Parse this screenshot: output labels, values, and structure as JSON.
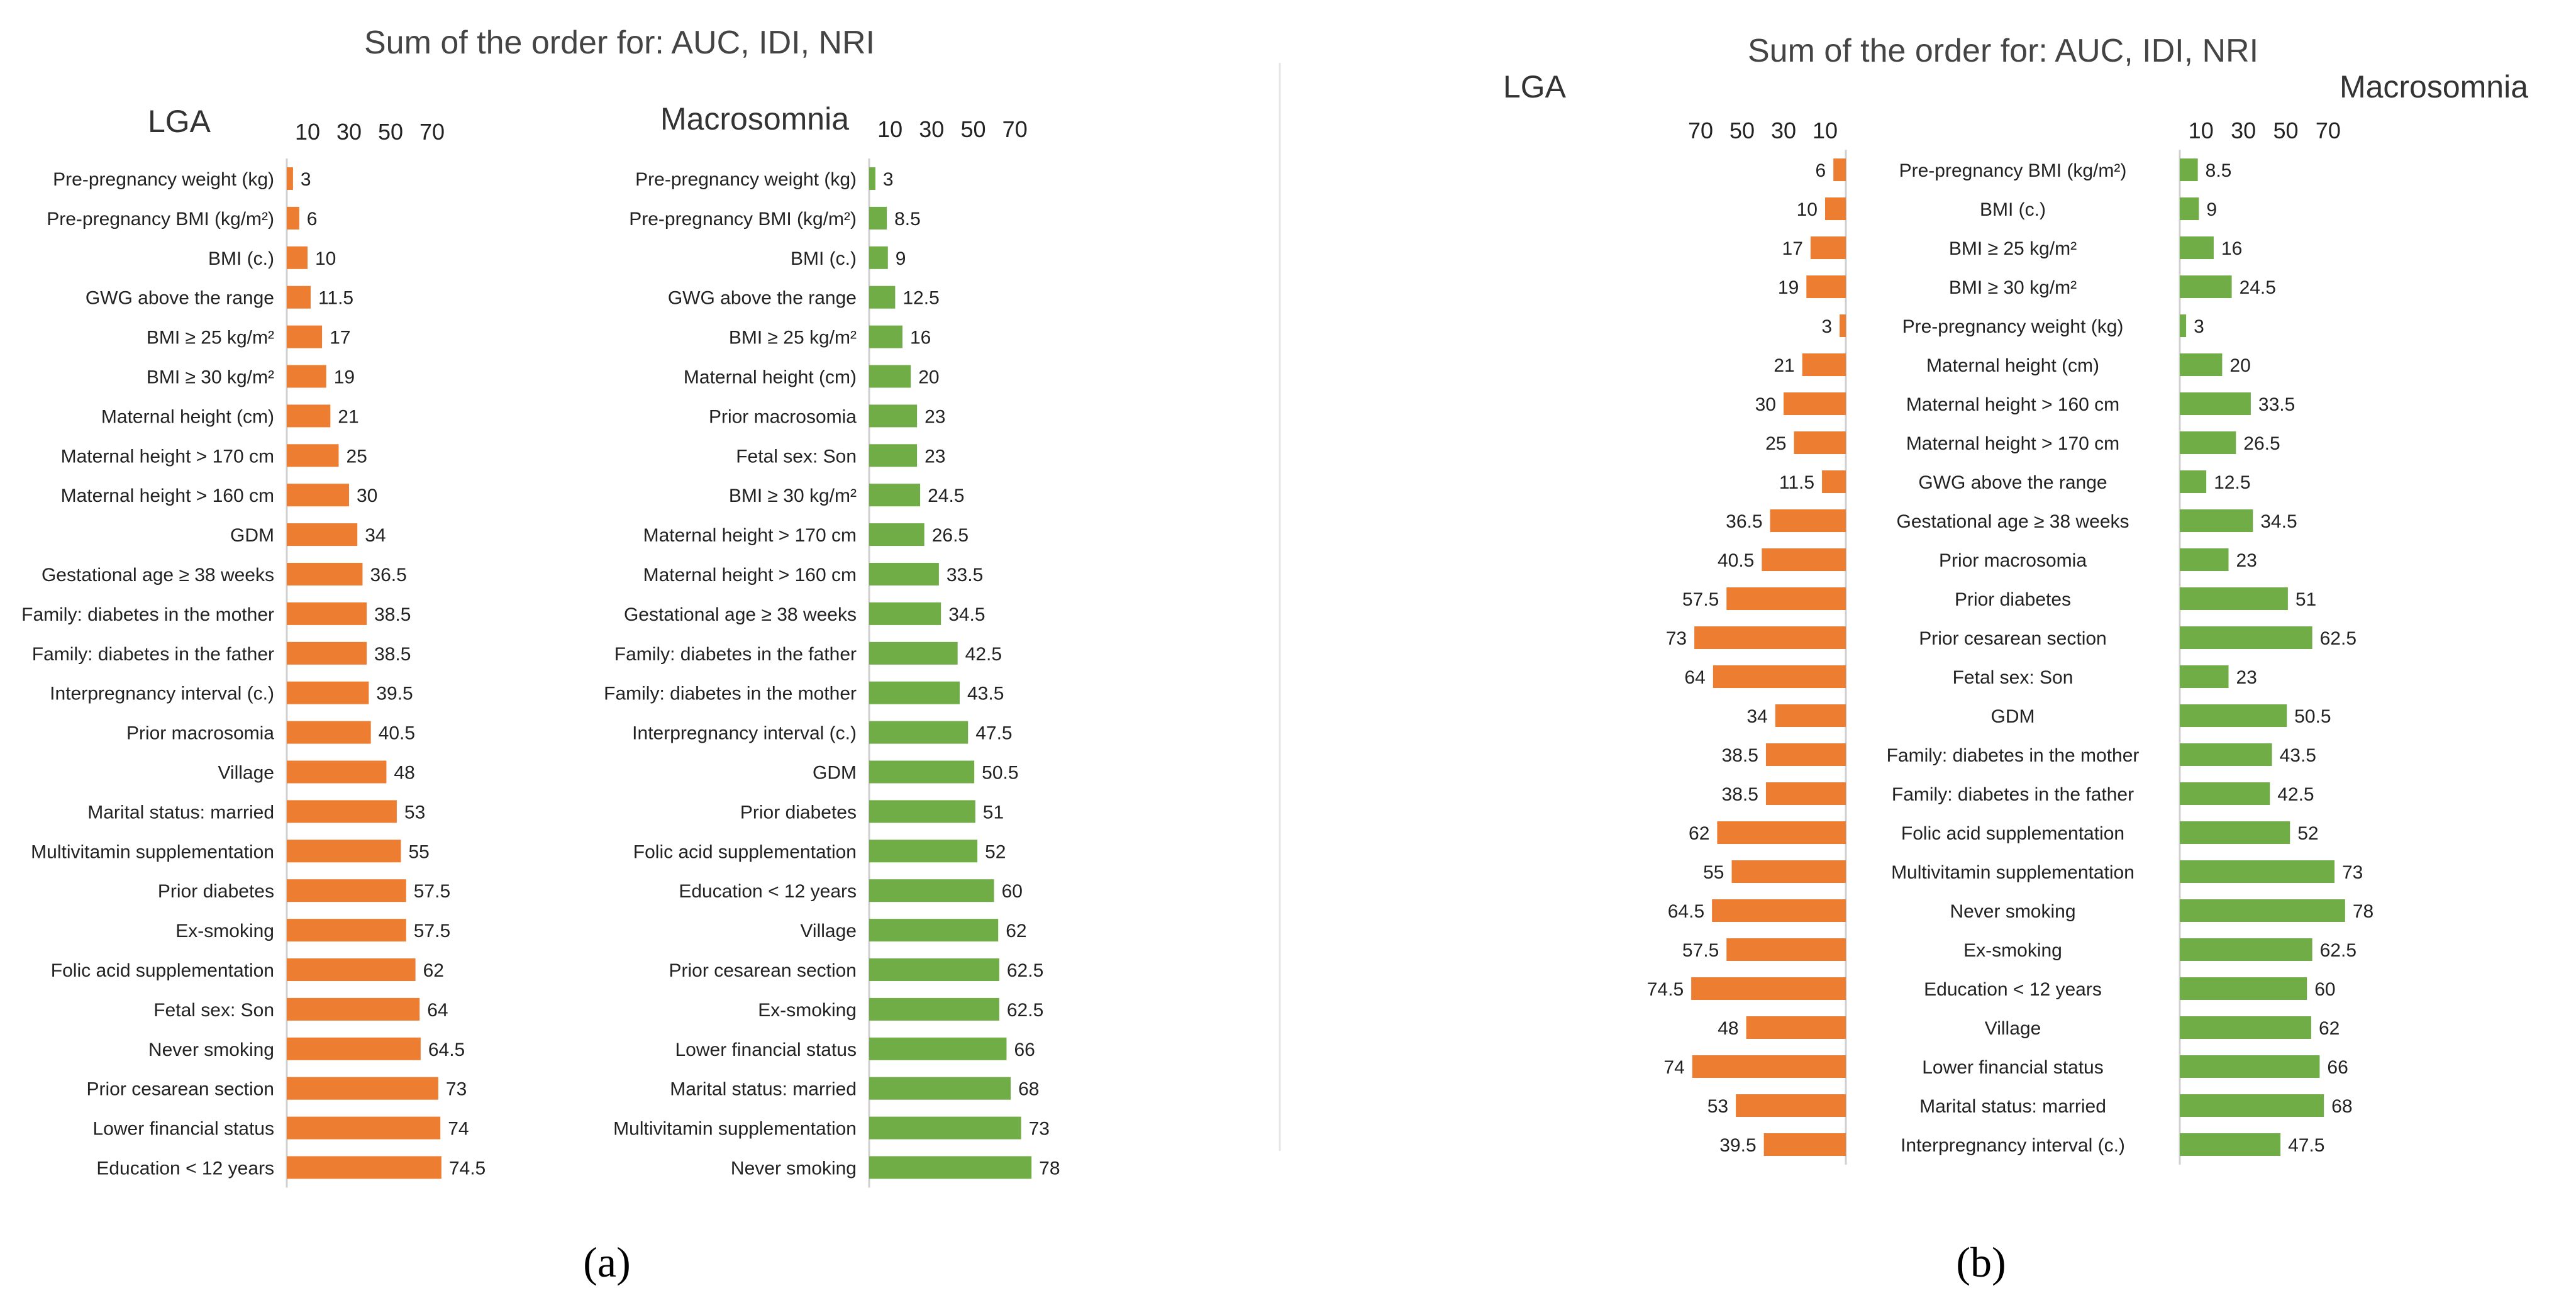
{
  "colors": {
    "lga": "#ed7d31",
    "macro": "#70ad47",
    "text": "#222222",
    "axis": "#d0d0d0"
  },
  "ticks": [
    "10",
    "30",
    "50",
    "70"
  ],
  "chart_data": [
    {
      "panel": "a",
      "type": "bar",
      "title": "Sum of the order for: AUC, IDI, NRI",
      "caption": "(a)",
      "charts": [
        {
          "title": "LGA",
          "orientation": "horizontal",
          "direction": "right",
          "color": "#ed7d31",
          "xlim": [
            0,
            80
          ],
          "categories": [
            "Pre-pregnancy weight (kg)",
            "Pre-pregnancy BMI (kg/m²)",
            "BMI (c.)",
            "GWG above the range",
            "BMI ≥ 25 kg/m²",
            "BMI ≥ 30 kg/m²",
            "Maternal height (cm)",
            "Maternal height > 170 cm",
            "Maternal height > 160 cm",
            "GDM",
            "Gestational age  ≥ 38 weeks",
            "Family: diabetes in the mother",
            "Family: diabetes in the father",
            "Interpregnancy interval (c.)",
            "Prior macrosomia",
            "Village",
            "Marital status: married",
            "Multivitamin supplementation",
            "Prior diabetes",
            "Ex-smoking",
            "Folic acid supplementation",
            "Fetal sex: Son",
            "Never smoking",
            "Prior cesarean section",
            "Lower financial status",
            "Education < 12 years"
          ],
          "values": [
            3,
            6,
            10,
            11.5,
            17,
            19,
            21,
            25,
            30,
            34,
            36.5,
            38.5,
            38.5,
            39.5,
            40.5,
            48,
            53,
            55,
            57.5,
            57.5,
            62,
            64,
            64.5,
            73,
            74,
            74.5
          ],
          "labels": [
            "3",
            "6",
            "10",
            "11.5",
            "17",
            "19",
            "21",
            "25",
            "30",
            "34",
            "36.5",
            "38.5",
            "38.5",
            "39.5",
            "40.5",
            "48",
            "53",
            "55",
            "57.5",
            "57.5",
            "62",
            "64",
            "64.5",
            "73",
            "74",
            "74.5"
          ]
        },
        {
          "title": "Macrosomnia",
          "orientation": "horizontal",
          "direction": "right",
          "color": "#70ad47",
          "xlim": [
            0,
            80
          ],
          "categories": [
            "Pre-pregnancy weight (kg)",
            "Pre-pregnancy BMI (kg/m²)",
            "BMI (c.)",
            "GWG above the range",
            "BMI ≥ 25 kg/m²",
            "Maternal height (cm)",
            "Prior macrosomia",
            "Fetal sex: Son",
            "BMI ≥ 30 kg/m²",
            "Maternal height > 170 cm",
            "Maternal height > 160 cm",
            "Gestational age  ≥ 38 weeks",
            "Family: diabetes in the father",
            "Family: diabetes in the mother",
            "Interpregnancy interval (c.)",
            "GDM",
            "Prior diabetes",
            "Folic acid supplementation",
            "Education < 12 years",
            "Village",
            "Prior cesarean section",
            "Ex-smoking",
            "Lower financial status",
            "Marital status: married",
            "Multivitamin supplementation",
            "Never smoking"
          ],
          "values": [
            3,
            8.5,
            9,
            12.5,
            16,
            20,
            23,
            23,
            24.5,
            26.5,
            33.5,
            34.5,
            42.5,
            43.5,
            47.5,
            50.5,
            51,
            52,
            60,
            62,
            62.5,
            62.5,
            66,
            68,
            73,
            78
          ],
          "labels": [
            "3",
            "8.5",
            "9",
            "12.5",
            "16",
            "20",
            "23",
            "23",
            "24.5",
            "26.5",
            "33.5",
            "34.5",
            "42.5",
            "43.5",
            "47.5",
            "50.5",
            "51",
            "52",
            "60",
            "62",
            "62.5",
            "62.5",
            "66",
            "68",
            "73",
            "78"
          ]
        }
      ]
    },
    {
      "panel": "b",
      "type": "bar",
      "title": "Sum of the order for: AUC, IDI, NRI",
      "caption": "(b)",
      "left_title": "LGA",
      "right_title": "Macrosomnia",
      "lga_color": "#ed7d31",
      "macro_color": "#70ad47",
      "xlim": [
        0,
        80
      ],
      "categories": [
        "Pre-pregnancy BMI (kg/m²)",
        "BMI (c.)",
        "BMI ≥ 25 kg/m²",
        "BMI ≥ 30 kg/m²",
        "Pre-pregnancy weight (kg)",
        "Maternal height (cm)",
        "Maternal height > 160 cm",
        "Maternal height > 170 cm",
        "GWG above the range",
        "Gestational age  ≥ 38 weeks",
        "Prior macrosomia",
        "Prior diabetes",
        "Prior cesarean section",
        "Fetal sex: Son",
        "GDM",
        "Family: diabetes in the mother",
        "Family: diabetes in the father",
        "Folic acid supplementation",
        "Multivitamin supplementation",
        "Never smoking",
        "Ex-smoking",
        "Education < 12 years",
        "Village",
        "Lower financial status",
        "Marital status: married",
        "Interpregnancy interval (c.)"
      ],
      "series": [
        {
          "name": "LGA",
          "values": [
            6,
            10,
            17,
            19,
            3,
            21,
            30,
            25,
            11.5,
            36.5,
            40.5,
            57.5,
            73,
            64,
            34,
            38.5,
            38.5,
            62,
            55,
            64.5,
            57.5,
            74.5,
            48,
            74,
            53,
            39.5
          ],
          "labels": [
            "6",
            "10",
            "17",
            "19",
            "3",
            "21",
            "30",
            "25",
            "11.5",
            "36.5",
            "40.5",
            "57.5",
            "73",
            "64",
            "34",
            "38.5",
            "38.5",
            "62",
            "55",
            "64.5",
            "57.5",
            "74.5",
            "48",
            "74",
            "53",
            "39.5"
          ]
        },
        {
          "name": "Macrosomnia",
          "values": [
            8.5,
            9,
            16,
            24.5,
            3,
            20,
            33.5,
            26.5,
            12.5,
            34.5,
            23,
            51,
            62.5,
            23,
            50.5,
            43.5,
            42.5,
            52,
            73,
            78,
            62.5,
            60,
            62,
            66,
            68,
            47.5
          ],
          "labels": [
            "8.5",
            "9",
            "16",
            "24.5",
            "3",
            "20",
            "33.5",
            "26.5",
            "12.5",
            "34.5",
            "23",
            "51",
            "62.5",
            "23",
            "50.5",
            "43.5",
            "42.5",
            "52",
            "73",
            "78",
            "62.5",
            "60",
            "62",
            "66",
            "68",
            "47.5"
          ]
        }
      ]
    }
  ]
}
